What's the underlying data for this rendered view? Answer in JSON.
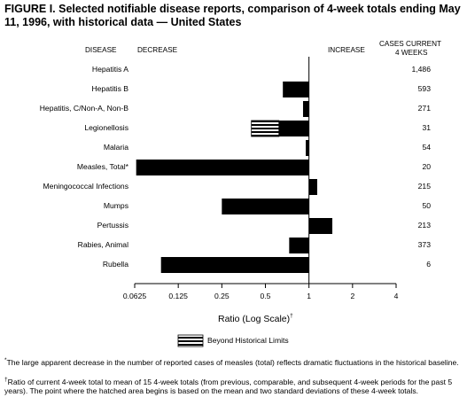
{
  "title": "FIGURE I. Selected notifiable disease reports, comparison of 4-week totals ending May 11, 1996, with historical data — United States",
  "headers": {
    "disease": "DISEASE",
    "decrease": "DECREASE",
    "increase": "INCREASE",
    "cases_line1": "CASES CURRENT",
    "cases_line2": "4 WEEKS"
  },
  "xlabel": "Ratio (Log Scale)",
  "xlabel_mark": "†",
  "legend": "Beyond Historical Limits",
  "footnotes": [
    {
      "mark": "*",
      "text": "The large apparent decrease in the number of reported cases of measles (total) reflects dramatic fluctuations in the historical baseline."
    },
    {
      "mark": "†",
      "text": "Ratio of current 4-week total to mean of 15 4-week totals (from previous, comparable, and subsequent 4-week periods for the past 5 years). The point where the hatched area begins is based on the mean and two standard deviations of these 4-week totals."
    }
  ],
  "chart_data": {
    "type": "bar",
    "orientation": "horizontal",
    "log_scale": true,
    "log_base": 2,
    "xlim": [
      0.0625,
      4
    ],
    "xticks": [
      0.0625,
      0.125,
      0.25,
      0.5,
      1,
      2,
      4
    ],
    "xtick_labels": [
      "0.0625",
      "0.125",
      "0.25",
      "0.5",
      "1",
      "2",
      "4"
    ],
    "baseline": 1,
    "categories": [
      "Hepatitis A",
      "Hepatitis B",
      "Hepatitis, C/Non-A, Non-B",
      "Legionellosis",
      "Malaria",
      "Measles, Total*",
      "Meningococcal Infections",
      "Mumps",
      "Pertussis",
      "Rabies, Animal",
      "Rubella"
    ],
    "values": [
      1.0,
      0.66,
      0.91,
      0.4,
      0.95,
      0.064,
      1.14,
      0.25,
      1.45,
      0.73,
      0.095
    ],
    "hatched_from": [
      null,
      null,
      null,
      0.62,
      null,
      null,
      null,
      null,
      null,
      null,
      null
    ],
    "cases_current_4_weeks": [
      "1,486",
      "593",
      "271",
      "31",
      "54",
      "20",
      "215",
      "50",
      "213",
      "373",
      "6"
    ],
    "grid": false
  }
}
